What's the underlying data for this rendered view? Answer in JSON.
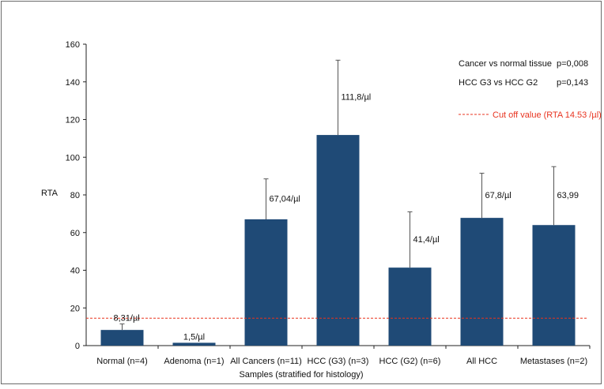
{
  "chart_data": {
    "type": "bar",
    "title": "",
    "xlabel": "Samples (stratified for histology)",
    "ylabel": "RTA",
    "ylim": [
      0,
      160
    ],
    "yticks": [
      0,
      20,
      40,
      60,
      80,
      100,
      120,
      140,
      160
    ],
    "categories": [
      "Normal (n=4)",
      "Adenoma (n=1)",
      "All Cancers (n=11)",
      "HCC (G3) (n=3)",
      "HCC (G2) (n=6)",
      "All HCC",
      "Metastases (n=2)"
    ],
    "values": [
      8.31,
      1.5,
      67.04,
      111.8,
      41.4,
      67.8,
      63.99
    ],
    "error_upper": [
      11.5,
      1.5,
      88.5,
      151.5,
      71.0,
      91.5,
      95.0
    ],
    "data_labels": [
      "8,31/µl",
      "1,5/µl",
      "67,04/µl",
      "111,8/µl",
      "41,4/µl",
      "67,8/µl",
      "63,99"
    ],
    "bar_color": "#1f4a76",
    "grid": false,
    "reference_line": {
      "value": 14.53,
      "color": "#e8331f",
      "label": "Cut off value (RTA 14.53 /µl)"
    },
    "annotations": [
      {
        "label": "Cancer vs normal tissue",
        "value": "p=0,008"
      },
      {
        "label": "HCC G3 vs HCC G2",
        "value": "p=0,143"
      }
    ]
  }
}
